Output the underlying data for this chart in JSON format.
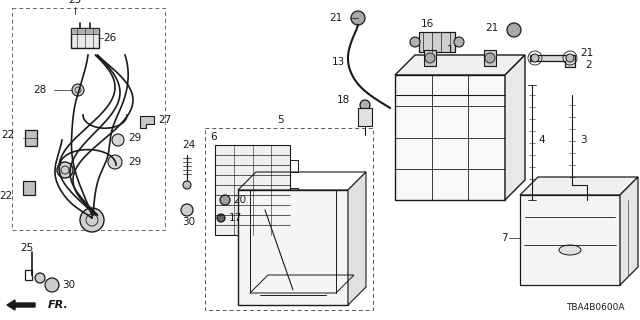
{
  "bg_color": "#ffffff",
  "diagram_code": "TBA4B0600A",
  "line_color": "#1a1a1a",
  "fig_w": 6.4,
  "fig_h": 3.2,
  "dpi": 100
}
